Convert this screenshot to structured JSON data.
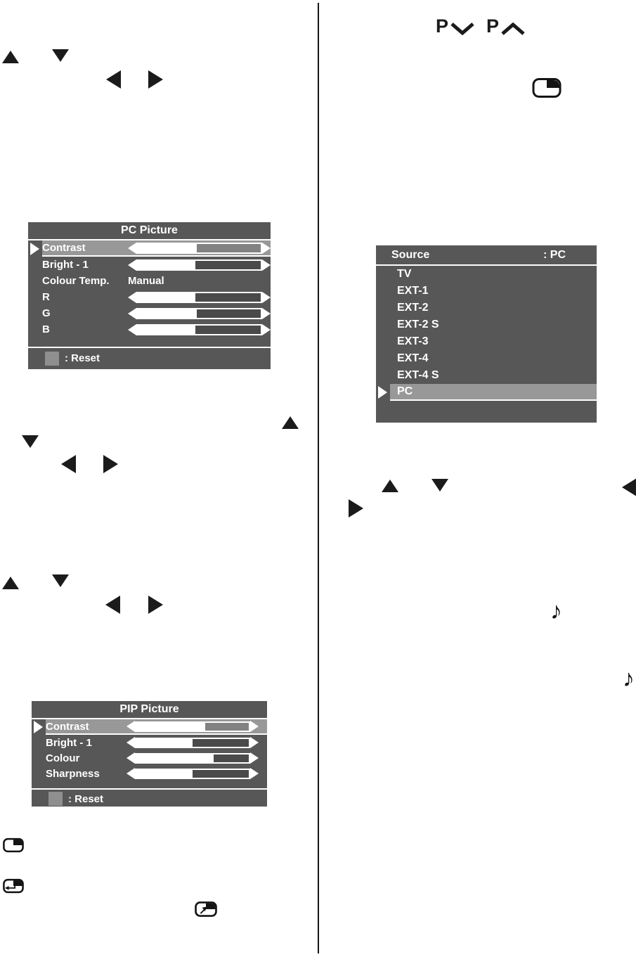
{
  "program_buttons": {
    "p_label": "P"
  },
  "icons": {
    "note_glyph": "♪"
  },
  "colors": {
    "menu_bg": "#575757",
    "highlight": "#989898",
    "reset_key": "#8f8f8f",
    "ink": "#1b1b1b"
  },
  "pc_picture_menu": {
    "title": "PC Picture",
    "rows": [
      {
        "label": "Contrast",
        "type": "slider",
        "value_pct": 48,
        "selected": true
      },
      {
        "label": "Bright - 1",
        "type": "slider",
        "value_pct": 47,
        "selected": false
      },
      {
        "label": "Colour Temp.",
        "type": "text",
        "value": "Manual",
        "selected": false
      },
      {
        "label": "R",
        "type": "slider",
        "value_pct": 47,
        "selected": false
      },
      {
        "label": "G",
        "type": "slider",
        "value_pct": 48,
        "selected": false
      },
      {
        "label": "B",
        "type": "slider",
        "value_pct": 47,
        "selected": false
      }
    ],
    "footer_label": ": Reset"
  },
  "source_menu": {
    "title": "Source",
    "current_value": ": PC",
    "items": [
      "TV",
      "EXT-1",
      "EXT-2",
      "EXT-2 S",
      "EXT-3",
      "EXT-4",
      "EXT-4 S",
      "PC"
    ],
    "selected_item": "PC"
  },
  "pip_picture_menu": {
    "title": "PIP Picture",
    "rows": [
      {
        "label": "Contrast",
        "value_pct": 61,
        "selected": true
      },
      {
        "label": "Bright - 1",
        "value_pct": 50,
        "selected": false
      },
      {
        "label": "Colour",
        "value_pct": 69,
        "selected": false
      },
      {
        "label": "Sharpness",
        "value_pct": 50,
        "selected": false
      }
    ],
    "footer_label": ": Reset"
  }
}
